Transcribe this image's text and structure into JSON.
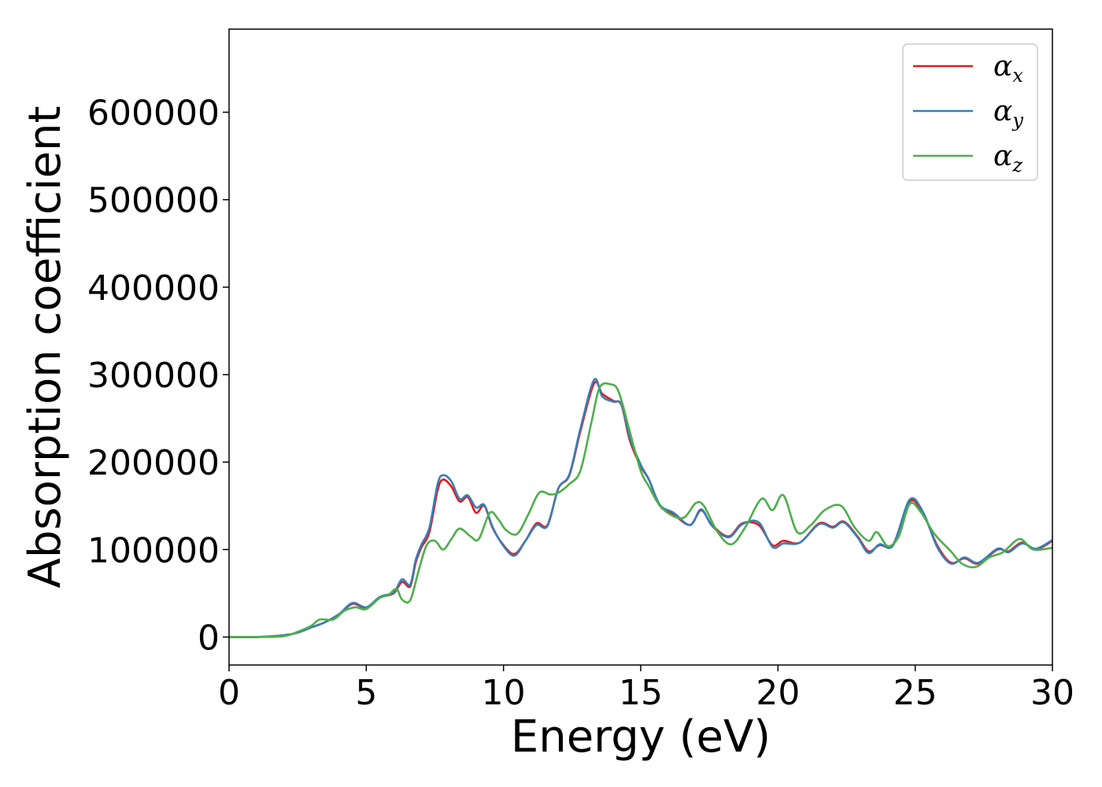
{
  "chart_data": {
    "type": "line",
    "title": "",
    "xlabel": "Energy (eV)",
    "ylabel": "Absorption coefficient",
    "xlim": [
      0,
      30
    ],
    "ylim": [
      -32000,
      695000
    ],
    "xticks": [
      0,
      5,
      10,
      15,
      20,
      25,
      30
    ],
    "yticks": [
      0,
      100000,
      200000,
      300000,
      400000,
      500000,
      600000
    ],
    "xtick_labels": [
      "0",
      "5",
      "10",
      "15",
      "20",
      "25",
      "30"
    ],
    "ytick_labels": [
      "0",
      "100000",
      "200000",
      "300000",
      "400000",
      "500000",
      "600000"
    ],
    "grid": false,
    "legend": {
      "position": "top-right"
    },
    "series": [
      {
        "name": "α",
        "subscript": "x",
        "color": "#e41a1c",
        "points": [
          [
            0,
            0
          ],
          [
            1,
            0
          ],
          [
            2,
            2000
          ],
          [
            2.5,
            5000
          ],
          [
            3,
            11000
          ],
          [
            3.5,
            17000
          ],
          [
            4,
            26000
          ],
          [
            4.5,
            38000
          ],
          [
            5,
            33000
          ],
          [
            5.5,
            45000
          ],
          [
            6,
            50000
          ],
          [
            6.3,
            63000
          ],
          [
            6.6,
            58000
          ],
          [
            6.8,
            85000
          ],
          [
            7,
            102000
          ],
          [
            7.3,
            120000
          ],
          [
            7.6,
            168000
          ],
          [
            7.8,
            180000
          ],
          [
            8.1,
            172000
          ],
          [
            8.4,
            155000
          ],
          [
            8.7,
            160000
          ],
          [
            9,
            142000
          ],
          [
            9.3,
            150000
          ],
          [
            9.6,
            125000
          ],
          [
            10,
            105000
          ],
          [
            10.4,
            95000
          ],
          [
            10.8,
            110000
          ],
          [
            11.2,
            130000
          ],
          [
            11.6,
            128000
          ],
          [
            12,
            170000
          ],
          [
            12.4,
            185000
          ],
          [
            12.8,
            235000
          ],
          [
            13.3,
            290000
          ],
          [
            13.6,
            278000
          ],
          [
            14,
            270000
          ],
          [
            14.3,
            265000
          ],
          [
            14.6,
            225000
          ],
          [
            15,
            195000
          ],
          [
            15.3,
            180000
          ],
          [
            15.7,
            150000
          ],
          [
            16.2,
            140000
          ],
          [
            16.8,
            128000
          ],
          [
            17.2,
            145000
          ],
          [
            17.6,
            128000
          ],
          [
            18.2,
            115000
          ],
          [
            18.7,
            130000
          ],
          [
            19.3,
            128000
          ],
          [
            19.8,
            105000
          ],
          [
            20.2,
            110000
          ],
          [
            20.8,
            108000
          ],
          [
            21.5,
            130000
          ],
          [
            22,
            126000
          ],
          [
            22.4,
            132000
          ],
          [
            22.9,
            115000
          ],
          [
            23.3,
            98000
          ],
          [
            23.7,
            105000
          ],
          [
            24.2,
            106000
          ],
          [
            24.8,
            155000
          ],
          [
            25.3,
            140000
          ],
          [
            25.8,
            105000
          ],
          [
            26.3,
            85000
          ],
          [
            26.8,
            90000
          ],
          [
            27.3,
            84000
          ],
          [
            28,
            100000
          ],
          [
            28.4,
            98000
          ],
          [
            28.9,
            108000
          ],
          [
            29.4,
            100000
          ],
          [
            30,
            110000
          ]
        ]
      },
      {
        "name": "α",
        "subscript": "y",
        "color": "#377eb8",
        "points": [
          [
            0,
            0
          ],
          [
            1,
            0
          ],
          [
            2,
            2000
          ],
          [
            2.5,
            5000
          ],
          [
            3,
            11000
          ],
          [
            3.5,
            17000
          ],
          [
            4,
            26000
          ],
          [
            4.5,
            39000
          ],
          [
            5,
            34000
          ],
          [
            5.5,
            46000
          ],
          [
            6,
            51000
          ],
          [
            6.3,
            66000
          ],
          [
            6.6,
            60000
          ],
          [
            6.8,
            88000
          ],
          [
            7,
            105000
          ],
          [
            7.3,
            125000
          ],
          [
            7.6,
            175000
          ],
          [
            7.8,
            185000
          ],
          [
            8.1,
            178000
          ],
          [
            8.4,
            158000
          ],
          [
            8.7,
            162000
          ],
          [
            9,
            148000
          ],
          [
            9.3,
            151000
          ],
          [
            9.6,
            126000
          ],
          [
            10,
            104000
          ],
          [
            10.4,
            93000
          ],
          [
            10.8,
            110000
          ],
          [
            11.2,
            128000
          ],
          [
            11.6,
            127000
          ],
          [
            12,
            170000
          ],
          [
            12.4,
            186000
          ],
          [
            12.8,
            238000
          ],
          [
            13.3,
            294000
          ],
          [
            13.6,
            275000
          ],
          [
            14,
            269000
          ],
          [
            14.3,
            266000
          ],
          [
            14.6,
            228000
          ],
          [
            15,
            197000
          ],
          [
            15.3,
            180000
          ],
          [
            15.7,
            151000
          ],
          [
            16.2,
            142000
          ],
          [
            16.8,
            128000
          ],
          [
            17.2,
            146000
          ],
          [
            17.6,
            127000
          ],
          [
            18.2,
            114000
          ],
          [
            18.7,
            129000
          ],
          [
            19.3,
            131000
          ],
          [
            19.8,
            103000
          ],
          [
            20.2,
            107000
          ],
          [
            20.8,
            108000
          ],
          [
            21.5,
            129000
          ],
          [
            22,
            125000
          ],
          [
            22.4,
            131000
          ],
          [
            22.9,
            114000
          ],
          [
            23.3,
            96000
          ],
          [
            23.7,
            106000
          ],
          [
            24.2,
            105000
          ],
          [
            24.8,
            157000
          ],
          [
            25.3,
            142000
          ],
          [
            25.8,
            103000
          ],
          [
            26.3,
            84000
          ],
          [
            26.8,
            91000
          ],
          [
            27.3,
            85000
          ],
          [
            28,
            101000
          ],
          [
            28.4,
            97000
          ],
          [
            28.9,
            107000
          ],
          [
            29.4,
            101000
          ],
          [
            30,
            111000
          ]
        ]
      },
      {
        "name": "α",
        "subscript": "z",
        "color": "#4daf4a",
        "points": [
          [
            0,
            0
          ],
          [
            1,
            0
          ],
          [
            2,
            1000
          ],
          [
            2.5,
            6000
          ],
          [
            3,
            13000
          ],
          [
            3.3,
            20000
          ],
          [
            3.8,
            20000
          ],
          [
            4.2,
            30000
          ],
          [
            4.6,
            34000
          ],
          [
            5,
            32000
          ],
          [
            5.5,
            45000
          ],
          [
            5.8,
            48000
          ],
          [
            6.1,
            55000
          ],
          [
            6.3,
            43000
          ],
          [
            6.6,
            42000
          ],
          [
            6.9,
            75000
          ],
          [
            7.2,
            105000
          ],
          [
            7.5,
            110000
          ],
          [
            7.8,
            100000
          ],
          [
            8.1,
            112000
          ],
          [
            8.4,
            124000
          ],
          [
            8.8,
            115000
          ],
          [
            9.1,
            112000
          ],
          [
            9.5,
            142000
          ],
          [
            9.8,
            135000
          ],
          [
            10.1,
            122000
          ],
          [
            10.5,
            118000
          ],
          [
            10.9,
            140000
          ],
          [
            11.3,
            165000
          ],
          [
            11.7,
            163000
          ],
          [
            12,
            165000
          ],
          [
            12.4,
            175000
          ],
          [
            12.8,
            190000
          ],
          [
            13.2,
            245000
          ],
          [
            13.5,
            285000
          ],
          [
            13.9,
            289000
          ],
          [
            14.2,
            280000
          ],
          [
            14.6,
            235000
          ],
          [
            15,
            190000
          ],
          [
            15.3,
            172000
          ],
          [
            15.7,
            150000
          ],
          [
            16.2,
            138000
          ],
          [
            16.6,
            137000
          ],
          [
            17,
            153000
          ],
          [
            17.3,
            150000
          ],
          [
            17.8,
            120000
          ],
          [
            18.3,
            106000
          ],
          [
            18.8,
            125000
          ],
          [
            19.4,
            158000
          ],
          [
            19.8,
            145000
          ],
          [
            20.2,
            162000
          ],
          [
            20.7,
            120000
          ],
          [
            21.2,
            128000
          ],
          [
            21.7,
            145000
          ],
          [
            22.3,
            150000
          ],
          [
            22.8,
            125000
          ],
          [
            23.3,
            110000
          ],
          [
            23.6,
            120000
          ],
          [
            24,
            104000
          ],
          [
            24.4,
            115000
          ],
          [
            24.8,
            152000
          ],
          [
            25.2,
            143000
          ],
          [
            25.7,
            118000
          ],
          [
            26.3,
            98000
          ],
          [
            26.7,
            84000
          ],
          [
            27.2,
            80000
          ],
          [
            27.7,
            91000
          ],
          [
            28.2,
            97000
          ],
          [
            28.8,
            112000
          ],
          [
            29.3,
            100000
          ],
          [
            30,
            102000
          ]
        ]
      }
    ]
  }
}
